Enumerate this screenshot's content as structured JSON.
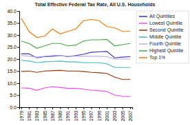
{
  "chart_data": {
    "type": "line",
    "title": "Total Effective Federal Tax Rate, All U.S. Households",
    "x": [
      1979,
      1981,
      1983,
      1985,
      1987,
      1989,
      1991,
      1993,
      1995,
      1997,
      1999,
      2001,
      2003,
      2005,
      2007
    ],
    "series": [
      {
        "name": "All Quintiles",
        "color": "#3333CC",
        "values": [
          22.2,
          22.2,
          20.5,
          21.0,
          21.2,
          21.5,
          21.0,
          21.5,
          22.0,
          22.8,
          23.0,
          23.2,
          20.5,
          20.8,
          21.0
        ]
      },
      {
        "name": "Lowest Quintile",
        "color": "#FF44FF",
        "values": [
          8.0,
          7.9,
          7.0,
          8.0,
          8.5,
          8.2,
          7.8,
          7.8,
          7.5,
          7.0,
          6.8,
          6.5,
          5.0,
          4.5,
          4.5
        ]
      },
      {
        "name": "Second Quintile",
        "color": "#993300",
        "values": [
          14.8,
          15.0,
          14.5,
          15.0,
          15.2,
          15.3,
          15.0,
          15.0,
          14.8,
          14.5,
          14.3,
          14.0,
          12.5,
          11.5,
          11.5
        ]
      },
      {
        "name": "Middle Quintile",
        "color": "#44BBBB",
        "values": [
          19.5,
          19.2,
          18.5,
          18.8,
          19.0,
          19.2,
          18.8,
          18.8,
          18.5,
          18.5,
          18.5,
          18.0,
          16.5,
          16.5,
          16.5
        ]
      },
      {
        "name": "Fourth Quintile",
        "color": "#BBAAEE",
        "values": [
          21.5,
          21.2,
          20.8,
          21.2,
          21.5,
          21.5,
          21.2,
          21.2,
          21.2,
          21.2,
          21.2,
          21.0,
          20.0,
          20.0,
          20.0
        ]
      },
      {
        "name": "Highest Quintile",
        "color": "#44AA44",
        "values": [
          27.5,
          26.5,
          24.5,
          25.5,
          26.5,
          26.5,
          25.5,
          25.8,
          27.5,
          28.0,
          28.0,
          28.2,
          25.5,
          26.0,
          26.5
        ]
      },
      {
        "name": "Top 1%",
        "color": "#FF7700",
        "values": [
          37.0,
          31.5,
          29.0,
          29.5,
          32.5,
          30.5,
          31.5,
          32.5,
          36.0,
          36.5,
          36.0,
          33.5,
          33.0,
          31.5,
          31.5
        ]
      }
    ],
    "xlim": [
      1978.5,
      2007.5
    ],
    "xticks": [
      1979,
      1981,
      1983,
      1985,
      1987,
      1989,
      1991,
      1993,
      1995,
      1997,
      1999,
      2001,
      2003,
      2005,
      2007
    ],
    "ylim": [
      0.0,
      40.0
    ],
    "yticks": [
      {
        "value": 0.0,
        "label": "0.0"
      },
      {
        "value": 5.0,
        "label": "5.0"
      },
      {
        "value": 10.0,
        "label": "10.0"
      },
      {
        "value": 15.0,
        "label": "15.0"
      },
      {
        "value": 20.0,
        "label": "20.0"
      },
      {
        "value": 25.0,
        "label": "25.0"
      },
      {
        "value": 30.0,
        "label": "30.0"
      },
      {
        "value": 35.0,
        "label": "35.0"
      },
      {
        "value": 40.0,
        "label": "40.0"
      }
    ],
    "grid": false,
    "legend": "right"
  }
}
